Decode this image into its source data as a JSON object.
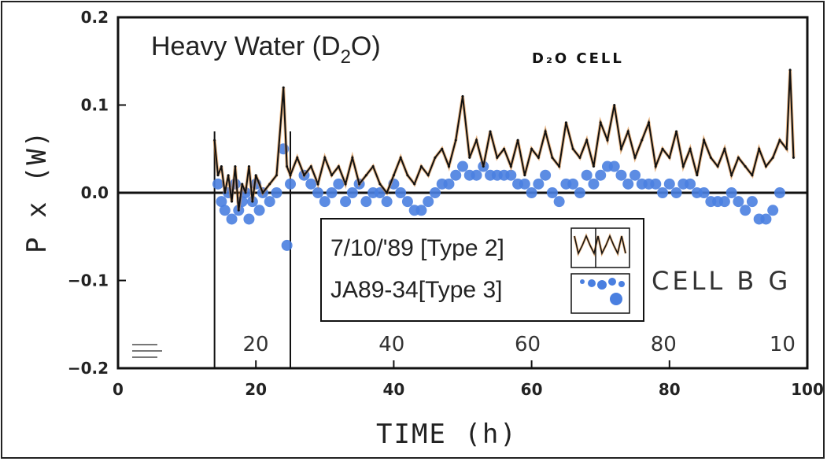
{
  "chart_data": {
    "type": "line",
    "title": "Heavy Water (D",
    "title_sub": "2",
    "title_end": "O)",
    "cell_label": "D₂O  CELL",
    "xlabel": "TIME  (h)",
    "ylabel": "P x (W)",
    "xlim": [
      0,
      100
    ],
    "ylim": [
      -0.2,
      0.2
    ],
    "x_ticks": [
      "0",
      "20",
      "40",
      "60",
      "80",
      "100"
    ],
    "y_ticks": [
      "0.2",
      "0.1",
      "0.0",
      "−0.1",
      "−0.2"
    ],
    "inner_x_ticks": [
      "20",
      "40",
      "60",
      "80",
      "10"
    ],
    "inner_label": "CELL B G",
    "grid": false,
    "legend_position": "bottom-center",
    "vertical_markers": [
      14,
      25
    ],
    "series": [
      {
        "name": "7/10/'89 [Type 2]",
        "style": "line",
        "color": "#111111",
        "x": [
          14,
          14.5,
          15,
          15.5,
          16,
          16.5,
          17,
          17.5,
          18,
          18.5,
          19,
          19.5,
          20,
          21,
          22,
          23,
          24,
          24.5,
          25,
          26,
          27,
          28,
          29,
          30,
          31,
          32,
          33,
          34,
          35,
          36,
          37,
          38,
          39,
          40,
          41,
          42,
          43,
          44,
          45,
          46,
          47,
          48,
          49,
          50,
          51,
          52,
          53,
          54,
          55,
          56,
          57,
          58,
          59,
          60,
          61,
          62,
          63,
          64,
          65,
          66,
          67,
          68,
          69,
          70,
          71,
          72,
          73,
          74,
          75,
          76,
          77,
          78,
          79,
          80,
          81,
          82,
          83,
          84,
          85,
          86,
          87,
          88,
          89,
          90,
          91,
          92,
          93,
          94,
          95,
          96,
          97,
          97.5,
          98
        ],
        "y": [
          0.06,
          0.02,
          0.03,
          0.0,
          0.02,
          -0.01,
          0.03,
          -0.02,
          0.01,
          0.0,
          0.03,
          -0.01,
          0.02,
          0.0,
          0.01,
          0.02,
          0.12,
          0.03,
          0.02,
          0.04,
          0.02,
          0.03,
          0.01,
          0.04,
          0.02,
          0.03,
          0.01,
          0.04,
          0.01,
          0.02,
          0.03,
          0.01,
          0.0,
          0.02,
          0.04,
          0.02,
          0.01,
          0.03,
          0.02,
          0.04,
          0.05,
          0.03,
          0.06,
          0.11,
          0.04,
          0.06,
          0.03,
          0.07,
          0.04,
          0.05,
          0.03,
          0.06,
          0.02,
          0.05,
          0.04,
          0.07,
          0.04,
          0.03,
          0.08,
          0.05,
          0.04,
          0.06,
          0.03,
          0.08,
          0.06,
          0.1,
          0.05,
          0.07,
          0.04,
          0.06,
          0.08,
          0.03,
          0.05,
          0.04,
          0.07,
          0.03,
          0.05,
          0.02,
          0.06,
          0.04,
          0.03,
          0.05,
          0.02,
          0.04,
          0.03,
          0.02,
          0.05,
          0.03,
          0.04,
          0.06,
          0.05,
          0.14,
          0.04
        ]
      },
      {
        "name": "JA89-34[Type 3]",
        "style": "scatter",
        "color": "#4a7fe0",
        "x": [
          14.5,
          15,
          15.5,
          16,
          16.5,
          17,
          17.5,
          18,
          18.5,
          19,
          19.5,
          20,
          20.5,
          21,
          22,
          23,
          24,
          24.5,
          25,
          27,
          28,
          29,
          30,
          31,
          32,
          33,
          34,
          35,
          36,
          37,
          38,
          39,
          40,
          41,
          42,
          43,
          44,
          45,
          46,
          47,
          48,
          49,
          50,
          51,
          52,
          53,
          54,
          55,
          56,
          57,
          58,
          59,
          60,
          61,
          62,
          63,
          64,
          65,
          66,
          67,
          68,
          69,
          70,
          71,
          72,
          73,
          74,
          75,
          76,
          77,
          78,
          79,
          80,
          81,
          82,
          83,
          84,
          85,
          86,
          87,
          88,
          89,
          90,
          91,
          92,
          93,
          94,
          95,
          96
        ],
        "y": [
          0.01,
          -0.01,
          -0.02,
          0.0,
          -0.03,
          0.01,
          -0.02,
          -0.01,
          0.0,
          -0.03,
          -0.01,
          0.01,
          -0.02,
          0.0,
          -0.01,
          0.0,
          0.05,
          -0.06,
          0.01,
          0.02,
          0.01,
          0.0,
          -0.01,
          0.0,
          0.01,
          -0.01,
          0.0,
          0.01,
          -0.01,
          0.0,
          0.0,
          -0.01,
          0.01,
          0.0,
          -0.01,
          -0.02,
          -0.02,
          -0.01,
          0.0,
          0.01,
          0.01,
          0.02,
          0.03,
          0.02,
          0.02,
          0.03,
          0.02,
          0.02,
          0.02,
          0.02,
          0.01,
          0.01,
          0.0,
          0.01,
          0.02,
          0.0,
          -0.01,
          0.01,
          0.01,
          0.0,
          0.02,
          0.01,
          0.02,
          0.03,
          0.03,
          0.02,
          0.01,
          0.02,
          0.01,
          0.01,
          0.01,
          0.0,
          0.01,
          0.0,
          0.01,
          0.01,
          0.0,
          0.0,
          -0.01,
          -0.01,
          -0.01,
          0.0,
          -0.01,
          -0.02,
          -0.01,
          -0.03,
          -0.03,
          -0.02,
          0.0
        ]
      }
    ]
  }
}
